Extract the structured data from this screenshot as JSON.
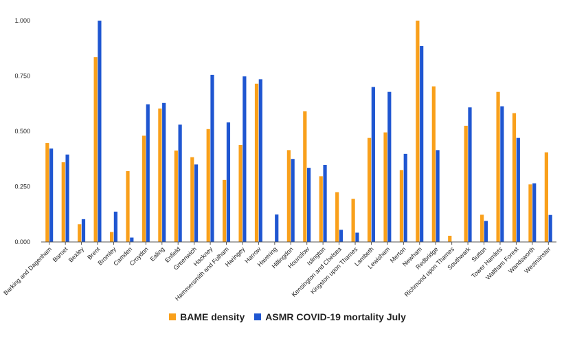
{
  "chart_data": {
    "type": "bar",
    "categories": [
      "Barking and Dagenham",
      "Barnet",
      "Bexley",
      "Brent",
      "Bromley",
      "Camden",
      "Croydon",
      "Ealing",
      "Enfield",
      "Greenwich",
      "Hackney",
      "Hammersmith and Fulham",
      "Haringey",
      "Harrow",
      "Havering",
      "Hillingdon",
      "Hounslow",
      "Islington",
      "Kensington and Chelsea",
      "Kingston upon Thames",
      "Lambeth",
      "Lewisham",
      "Merton",
      "Newham",
      "Redbridge",
      "Richmond upon Thames",
      "Southwark",
      "Sutton",
      "Tower Hamlets",
      "Waltham Forest",
      "Wandsworth",
      "Westminster"
    ],
    "series": [
      {
        "name": "BAME density",
        "color": "#f9a01b",
        "values": [
          0.447,
          0.36,
          0.08,
          0.835,
          0.045,
          0.32,
          0.48,
          0.603,
          0.413,
          0.383,
          0.51,
          0.28,
          0.438,
          0.715,
          0.0,
          0.415,
          0.59,
          0.297,
          0.225,
          0.195,
          0.47,
          0.495,
          0.325,
          1.0,
          0.703,
          0.028,
          0.525,
          0.123,
          0.678,
          0.582,
          0.26,
          0.405
        ]
      },
      {
        "name": "ASMR COVID-19 mortality July",
        "color": "#1f56d1",
        "values": [
          0.422,
          0.395,
          0.103,
          1.0,
          0.137,
          0.02,
          0.622,
          0.628,
          0.53,
          0.35,
          0.755,
          0.54,
          0.748,
          0.735,
          0.124,
          0.375,
          0.335,
          0.348,
          0.055,
          0.042,
          0.7,
          0.678,
          0.398,
          0.885,
          0.415,
          0.0,
          0.608,
          0.095,
          0.613,
          0.47,
          0.265,
          0.122
        ]
      }
    ],
    "yticks": [
      "0.000",
      "0.250",
      "0.500",
      "0.750",
      "1.000"
    ],
    "ylim": [
      0,
      1
    ],
    "grid": false,
    "legend_position": "bottom-center"
  }
}
